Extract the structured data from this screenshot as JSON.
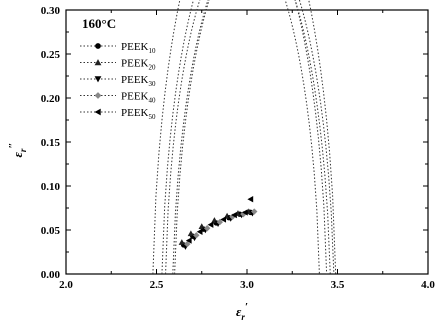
{
  "chart_data": {
    "type": "scatter",
    "panel_label": "160°C",
    "xlabel": {
      "base": "ε",
      "sub": "r",
      "prime": "′"
    },
    "ylabel": {
      "base": "ε",
      "sub": "r",
      "prime": "″"
    },
    "xlim": [
      2.0,
      4.0
    ],
    "ylim": [
      0.0,
      0.3
    ],
    "x_ticks": [
      "2.0",
      "2.5",
      "3.0",
      "3.5",
      "4.0"
    ],
    "y_ticks": [
      "0.00",
      "0.05",
      "0.10",
      "0.15",
      "0.20",
      "0.25",
      "0.30"
    ],
    "x_tick_values": [
      2.0,
      2.5,
      3.0,
      3.5,
      4.0
    ],
    "y_tick_values": [
      0.0,
      0.05,
      0.1,
      0.15,
      0.2,
      0.25,
      0.3
    ],
    "grid": false,
    "legend_position": "top-left",
    "series": [
      {
        "name": "PEEK10",
        "base": "PEEK",
        "sub": "10",
        "marker": "circle",
        "color": "#000000",
        "points": [
          [
            2.65,
            0.033
          ],
          [
            2.7,
            0.043
          ],
          [
            2.76,
            0.051
          ],
          [
            2.83,
            0.058
          ],
          [
            2.9,
            0.064
          ],
          [
            2.96,
            0.068
          ],
          [
            3.02,
            0.07
          ]
        ],
        "fit_arc": {
          "x_left": 2.55,
          "x_right": 3.4,
          "center_y": -0.045,
          "linestyle": "dotted"
        }
      },
      {
        "name": "PEEK20",
        "base": "PEEK",
        "sub": "20",
        "marker": "triangle-up",
        "color": "#222222",
        "points": [
          [
            2.64,
            0.036
          ],
          [
            2.69,
            0.046
          ],
          [
            2.75,
            0.054
          ],
          [
            2.82,
            0.061
          ],
          [
            2.89,
            0.066
          ],
          [
            2.95,
            0.069
          ],
          [
            3.01,
            0.071
          ]
        ],
        "fit_arc": {
          "x_left": 2.53,
          "x_right": 3.44,
          "center_y": -0.05,
          "linestyle": "dotted"
        }
      },
      {
        "name": "PEEK30",
        "base": "PEEK",
        "sub": "30",
        "marker": "triangle-down",
        "color": "#000000",
        "points": [
          [
            2.66,
            0.031
          ],
          [
            2.71,
            0.041
          ],
          [
            2.77,
            0.05
          ],
          [
            2.84,
            0.057
          ],
          [
            2.91,
            0.063
          ],
          [
            2.97,
            0.067
          ],
          [
            3.03,
            0.069
          ]
        ],
        "fit_arc": {
          "x_left": 2.59,
          "x_right": 3.46,
          "center_y": -0.055,
          "linestyle": "dotted"
        }
      },
      {
        "name": "PEEK40",
        "base": "PEEK",
        "sub": "40",
        "marker": "diamond",
        "color": "#888888",
        "points": [
          [
            2.67,
            0.034
          ],
          [
            2.72,
            0.044
          ],
          [
            2.78,
            0.052
          ],
          [
            2.85,
            0.059
          ],
          [
            2.92,
            0.065
          ],
          [
            2.98,
            0.068
          ],
          [
            3.04,
            0.071
          ]
        ],
        "fit_arc": {
          "x_left": 2.6,
          "x_right": 3.48,
          "center_y": -0.055,
          "linestyle": "dotted"
        }
      },
      {
        "name": "PEEK50",
        "base": "PEEK",
        "sub": "50",
        "marker": "triangle-left",
        "color": "#000000",
        "points": [
          [
            2.68,
            0.038
          ],
          [
            2.74,
            0.048
          ],
          [
            2.8,
            0.056
          ],
          [
            2.87,
            0.062
          ],
          [
            2.93,
            0.067
          ],
          [
            2.99,
            0.07
          ],
          [
            3.02,
            0.085
          ]
        ],
        "fit_arc": {
          "x_left": 2.48,
          "x_right": 3.49,
          "center_y": -0.05,
          "linestyle": "dotted"
        }
      }
    ]
  }
}
